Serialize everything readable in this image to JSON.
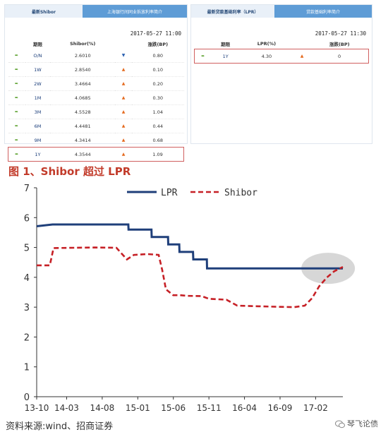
{
  "left_panel": {
    "tab_active": "最新Shibor",
    "tab_inactive": "上海银行间同业拆放利率简介",
    "timestamp": "2017-05-27 11:00",
    "headers": [
      "期限",
      "Shibor(%)",
      "涨跌(BP)"
    ],
    "rows": [
      {
        "term": "O/N",
        "rate": "2.6010",
        "dir": "down",
        "change": "0.80"
      },
      {
        "term": "1W",
        "rate": "2.8540",
        "dir": "up",
        "change": "0.10"
      },
      {
        "term": "2W",
        "rate": "3.4664",
        "dir": "up",
        "change": "0.20"
      },
      {
        "term": "1M",
        "rate": "4.0685",
        "dir": "up",
        "change": "0.30"
      },
      {
        "term": "3M",
        "rate": "4.5528",
        "dir": "up",
        "change": "1.04"
      },
      {
        "term": "6M",
        "rate": "4.4481",
        "dir": "up",
        "change": "0.44"
      },
      {
        "term": "9M",
        "rate": "4.3414",
        "dir": "up",
        "change": "0.68"
      },
      {
        "term": "1Y",
        "rate": "4.3544",
        "dir": "up",
        "change": "1.09",
        "highlight": true
      }
    ]
  },
  "right_panel": {
    "tab_active": "最新贷款基础利率（LPR）",
    "tab_inactive": "贷款基础利率简介",
    "timestamp": "2017-05-27 11:30",
    "headers": [
      "期限",
      "LPR(%)",
      "涨跌(BP)"
    ],
    "rows": [
      {
        "term": "1Y",
        "rate": "4.30",
        "dir": "up",
        "change": "0",
        "highlight": true
      }
    ]
  },
  "figure_title": "图 1、Shibor 超过 LPR",
  "source": "资料来源:wind、招商证券",
  "brand": "琴飞论债",
  "colors": {
    "lpr": "#1f3f7a",
    "shibor": "#c62026",
    "tab": "#5e9cd6",
    "highlight_ellipse": "#c9c9c9"
  },
  "chart_data": {
    "type": "line",
    "title": "图 1、Shibor 超过 LPR",
    "xlabel": "",
    "ylabel": "",
    "ylim": [
      0,
      7
    ],
    "yticks": [
      0,
      1,
      2,
      3,
      4,
      5,
      6,
      7
    ],
    "xticks": [
      "13-10",
      "14-03",
      "14-08",
      "15-01",
      "15-06",
      "15-11",
      "16-04",
      "16-09",
      "17-02"
    ],
    "legend": "top",
    "grid": false,
    "series": [
      {
        "name": "LPR",
        "style": "solid",
        "x": [
          "2013-10-25",
          "2014-01-01",
          "2014-11-21",
          "2014-11-22",
          "2015-02-28",
          "2015-03-01",
          "2015-05-10",
          "2015-05-11",
          "2015-06-27",
          "2015-06-28",
          "2015-08-25",
          "2015-08-26",
          "2015-10-23",
          "2015-10-24",
          "2017-05-27"
        ],
        "values": [
          5.71,
          5.77,
          5.77,
          5.6,
          5.6,
          5.35,
          5.35,
          5.1,
          5.1,
          4.85,
          4.85,
          4.6,
          4.6,
          4.3,
          4.3
        ]
      },
      {
        "name": "Shibor",
        "style": "dashed",
        "x": [
          "2013-10-25",
          "2013-12-20",
          "2014-01-05",
          "2014-07-01",
          "2014-10-01",
          "2014-11-15",
          "2014-12-15",
          "2015-02-10",
          "2015-03-31",
          "2015-04-15",
          "2015-05-01",
          "2015-06-01",
          "2015-07-01",
          "2015-08-01",
          "2015-10-01",
          "2015-11-01",
          "2016-01-15",
          "2016-03-01",
          "2016-06-01",
          "2016-09-01",
          "2016-11-01",
          "2016-12-15",
          "2017-01-15",
          "2017-02-15",
          "2017-03-20",
          "2017-04-20",
          "2017-05-27"
        ],
        "values": [
          4.4,
          4.4,
          4.98,
          5.0,
          4.99,
          4.6,
          4.75,
          4.78,
          4.75,
          4.25,
          3.6,
          3.4,
          3.4,
          3.38,
          3.37,
          3.28,
          3.25,
          3.05,
          3.03,
          3.01,
          3.0,
          3.05,
          3.3,
          3.7,
          4.0,
          4.2,
          4.35
        ]
      }
    ]
  }
}
